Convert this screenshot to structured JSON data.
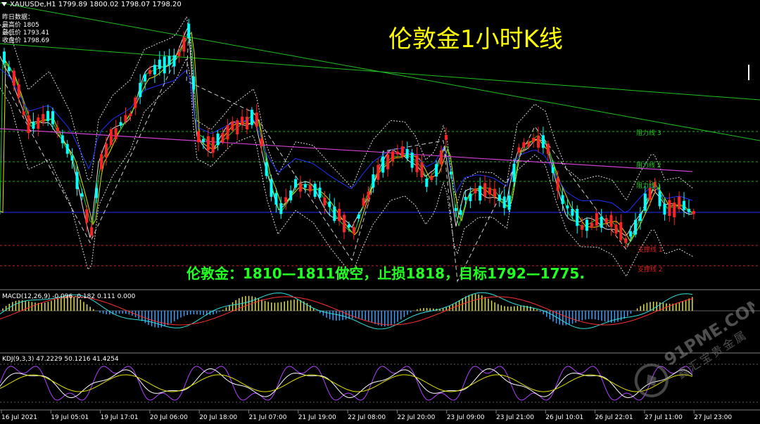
{
  "header": {
    "symbol": "XAUUSDe,H1",
    "ohlc": "1799.89 1800.02 1798.07 1798.20"
  },
  "daily": {
    "label": "昨日数据：",
    "l1": "最高价 1805",
    "l2": "最低价 1793.41",
    "l3": "收盘价 1798.69"
  },
  "title": "伦敦金1小时K线",
  "strategy": "伦敦金：1810—1811做空，止损1818，目标1792—1775.",
  "levels": {
    "r3": "阻力线 3",
    "r2": "阻力线 2",
    "r1": "阻力线 1",
    "s1": "支撑线 1",
    "s2": "支撑线 2"
  },
  "macd": {
    "label": "MACD(12,26,9) -0.096 -0.182 0.111 0.000"
  },
  "kdj": {
    "label": "KDJ(9,3,3) 47.2229 50.1216 41.4254"
  },
  "watermark": {
    "text": "91PME.COM",
    "sub": "鑫汇宝贵金属"
  },
  "x_labels": [
    "16 Jul 2021",
    "19 Jul 05:01",
    "19 Jul 17:01",
    "20 Jul 06:00",
    "20 Jul 18:00",
    "21 Jul 07:00",
    "21 Jul 19:00",
    "22 Jul 08:00",
    "22 Jul 20:00",
    "23 Jul 09:00",
    "23 Jul 21:00",
    "26 Jul 10:01",
    "26 Jul 22:01",
    "27 Jul 11:00",
    "27 Jul 23:00"
  ],
  "colors": {
    "up": "#00ffff",
    "down": "#ff2222",
    "title": "#ffff00",
    "strategy": "#22ff22",
    "resistance": "#22aa22",
    "support": "#cc2222",
    "ma_slow": "#d040d0",
    "ma_blue": "#2030ff"
  },
  "chart_data": {
    "type": "candlestick",
    "symbol": "XAUUSDe",
    "timeframe": "H1",
    "open": 1799.89,
    "high": 1800.02,
    "low": 1798.07,
    "close": 1798.2,
    "indicators": [
      "MACD(12,26,9)",
      "KDJ(9,3,3)"
    ],
    "macd": [
      -0.096,
      -0.182,
      0.111,
      0.0
    ],
    "kdj": [
      47.2229,
      50.1216,
      41.4254
    ],
    "previous_day": {
      "high": 1805,
      "low": 1793.41,
      "close": 1798.69
    }
  }
}
